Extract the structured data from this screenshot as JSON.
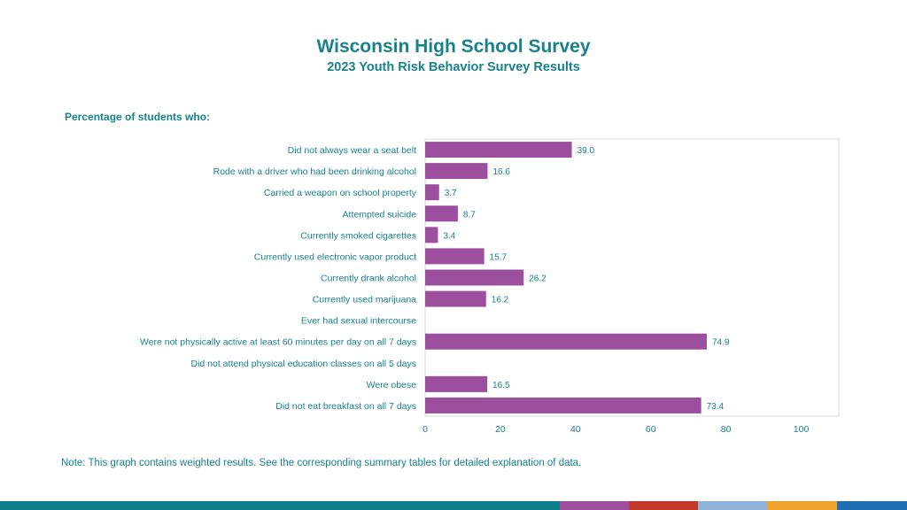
{
  "title": "Wisconsin High School Survey",
  "subtitle": "2023 Youth Risk Behavior Survey Results",
  "section_label": "Percentage of students who:",
  "note": "Note: This graph contains weighted results. See the corresponding summary tables for detailed explanation of data.",
  "colors": {
    "bar": "#9c4f9e",
    "text": "#17828c",
    "footer": [
      "#0e7f8c",
      "#9c4f9e",
      "#c0392b",
      "#8fb3d9",
      "#f0a22e",
      "#1f6fb5"
    ]
  },
  "chart_data": {
    "type": "bar",
    "orientation": "horizontal",
    "categories": [
      "Did not always wear a seat belt",
      "Rode with a driver who had been drinking alcohol",
      "Carried a weapon on school property",
      "Attempted suicide",
      "Currently smoked cigarettes",
      "Currently used electronic vapor product",
      "Currently drank alcohol",
      "Currently used marijuana ",
      "Ever had sexual intercourse",
      "Were not physically active at least 60 minutes per day on all 7 days",
      "Did not attend physical education classes on all 5 days",
      "Were obese",
      "Did not eat breakfast on all 7 days"
    ],
    "values": [
      39.0,
      16.6,
      3.7,
      8.7,
      3.4,
      15.7,
      26.2,
      16.2,
      null,
      74.9,
      null,
      16.5,
      73.4
    ],
    "data_labels": [
      "39.0",
      "16.6",
      "3.7",
      "8.7",
      "3.4",
      "15.7",
      "26.2",
      "16.2",
      "",
      "74.9",
      "",
      "16.5",
      "73.4"
    ],
    "xlim": [
      0,
      110
    ],
    "xticks": [
      0,
      20,
      40,
      60,
      80,
      100
    ],
    "grid": false,
    "legend": "none"
  }
}
